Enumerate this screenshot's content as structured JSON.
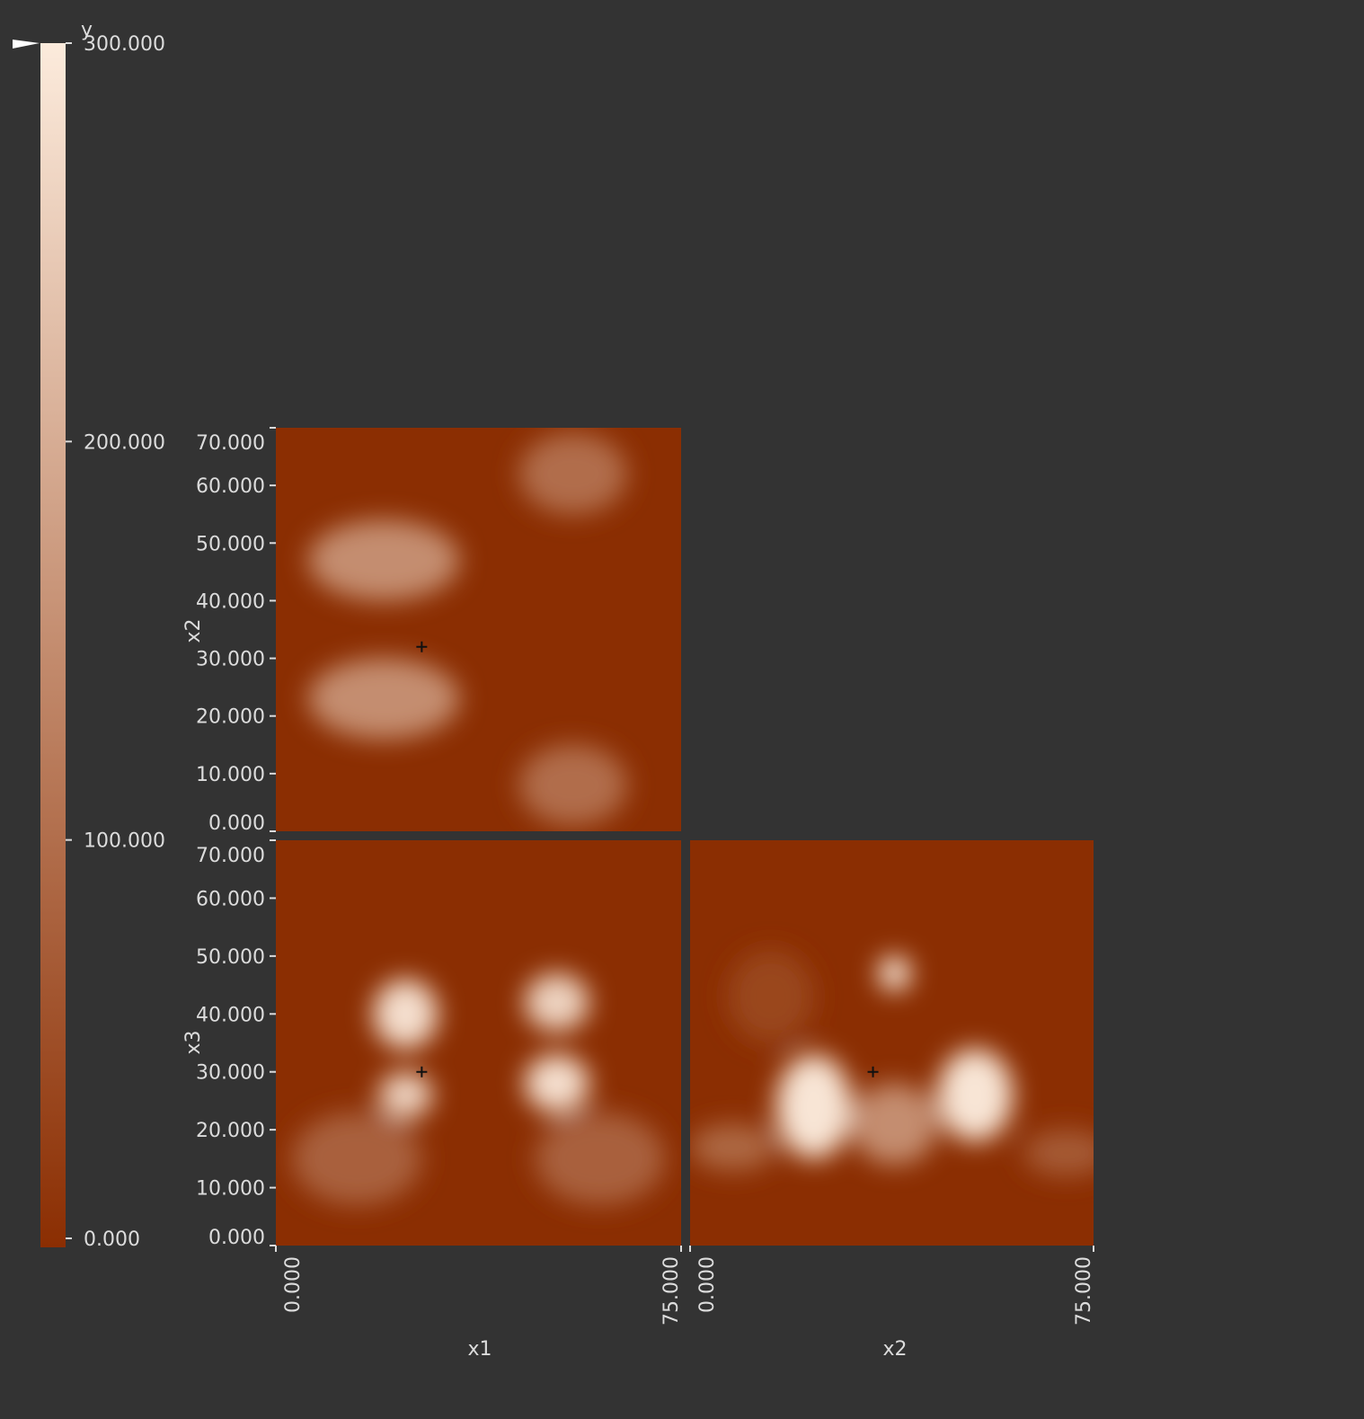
{
  "chart_data": {
    "type": "heatmap",
    "colorbar": {
      "label": "y",
      "range": [
        0,
        300
      ],
      "ticks": [
        "300.000",
        "200.000",
        "100.000",
        "0.000"
      ],
      "tick_values": [
        300,
        200,
        100,
        0
      ],
      "colors": {
        "low": "#8b2e02",
        "high": "#fcebdc"
      }
    },
    "panels": [
      {
        "id": "x1-x2",
        "xlabel": "",
        "ylabel": "x2",
        "xlim": [
          0,
          75
        ],
        "ylim": [
          0,
          70
        ],
        "yticks": [
          "70.000",
          "60.000",
          "50.000",
          "40.000",
          "30.000",
          "20.000",
          "10.000",
          "0.000"
        ],
        "ytick_values": [
          70,
          60,
          50,
          40,
          30,
          20,
          10,
          0
        ],
        "marker": {
          "x": 27,
          "y": 32
        },
        "blobs": [
          {
            "x": 20,
            "y": 47,
            "rx": 14,
            "ry": 7,
            "value": 150
          },
          {
            "x": 20,
            "y": 23,
            "rx": 14,
            "ry": 7,
            "value": 150
          },
          {
            "x": 55,
            "y": 62,
            "rx": 10,
            "ry": 7,
            "value": 100
          },
          {
            "x": 55,
            "y": 8,
            "rx": 10,
            "ry": 7,
            "value": 100
          }
        ]
      },
      {
        "id": "x1-x3",
        "xlabel": "x1",
        "ylabel": "x3",
        "xlim": [
          0,
          75
        ],
        "ylim": [
          0,
          70
        ],
        "yticks": [
          "70.000",
          "60.000",
          "50.000",
          "40.000",
          "30.000",
          "20.000",
          "10.000",
          "0.000"
        ],
        "ytick_values": [
          70,
          60,
          50,
          40,
          30,
          20,
          10,
          0
        ],
        "xticks": [
          "0.000",
          "75.000"
        ],
        "xtick_values": [
          0,
          75
        ],
        "marker": {
          "x": 27,
          "y": 30
        },
        "blobs": [
          {
            "x": 24,
            "y": 40,
            "rx": 6,
            "ry": 6,
            "value": 280
          },
          {
            "x": 24,
            "y": 26,
            "rx": 5,
            "ry": 4,
            "value": 260
          },
          {
            "x": 52,
            "y": 42,
            "rx": 6,
            "ry": 5,
            "value": 260
          },
          {
            "x": 52,
            "y": 28,
            "rx": 6,
            "ry": 5,
            "value": 280
          },
          {
            "x": 15,
            "y": 15,
            "rx": 12,
            "ry": 8,
            "value": 80
          },
          {
            "x": 60,
            "y": 15,
            "rx": 12,
            "ry": 8,
            "value": 80
          }
        ]
      },
      {
        "id": "x2-x3",
        "xlabel": "x2",
        "ylabel": "",
        "xlim": [
          0,
          75
        ],
        "ylim": [
          0,
          70
        ],
        "xticks": [
          "0.000",
          "75.000"
        ],
        "xtick_values": [
          0,
          75
        ],
        "marker": {
          "x": 34,
          "y": 30
        },
        "blobs": [
          {
            "x": 38,
            "y": 47,
            "rx": 3,
            "ry": 3,
            "value": 300
          },
          {
            "x": 23,
            "y": 24,
            "rx": 7,
            "ry": 9,
            "value": 290
          },
          {
            "x": 53,
            "y": 26,
            "rx": 7,
            "ry": 8,
            "value": 290
          },
          {
            "x": 38,
            "y": 21,
            "rx": 8,
            "ry": 7,
            "value": 150
          },
          {
            "x": 8,
            "y": 17,
            "rx": 8,
            "ry": 4,
            "value": 90
          },
          {
            "x": 70,
            "y": 16,
            "rx": 8,
            "ry": 4,
            "value": 70
          },
          {
            "x": 15,
            "y": 43,
            "rx": 8,
            "ry": 8,
            "value": 40
          }
        ]
      }
    ]
  }
}
